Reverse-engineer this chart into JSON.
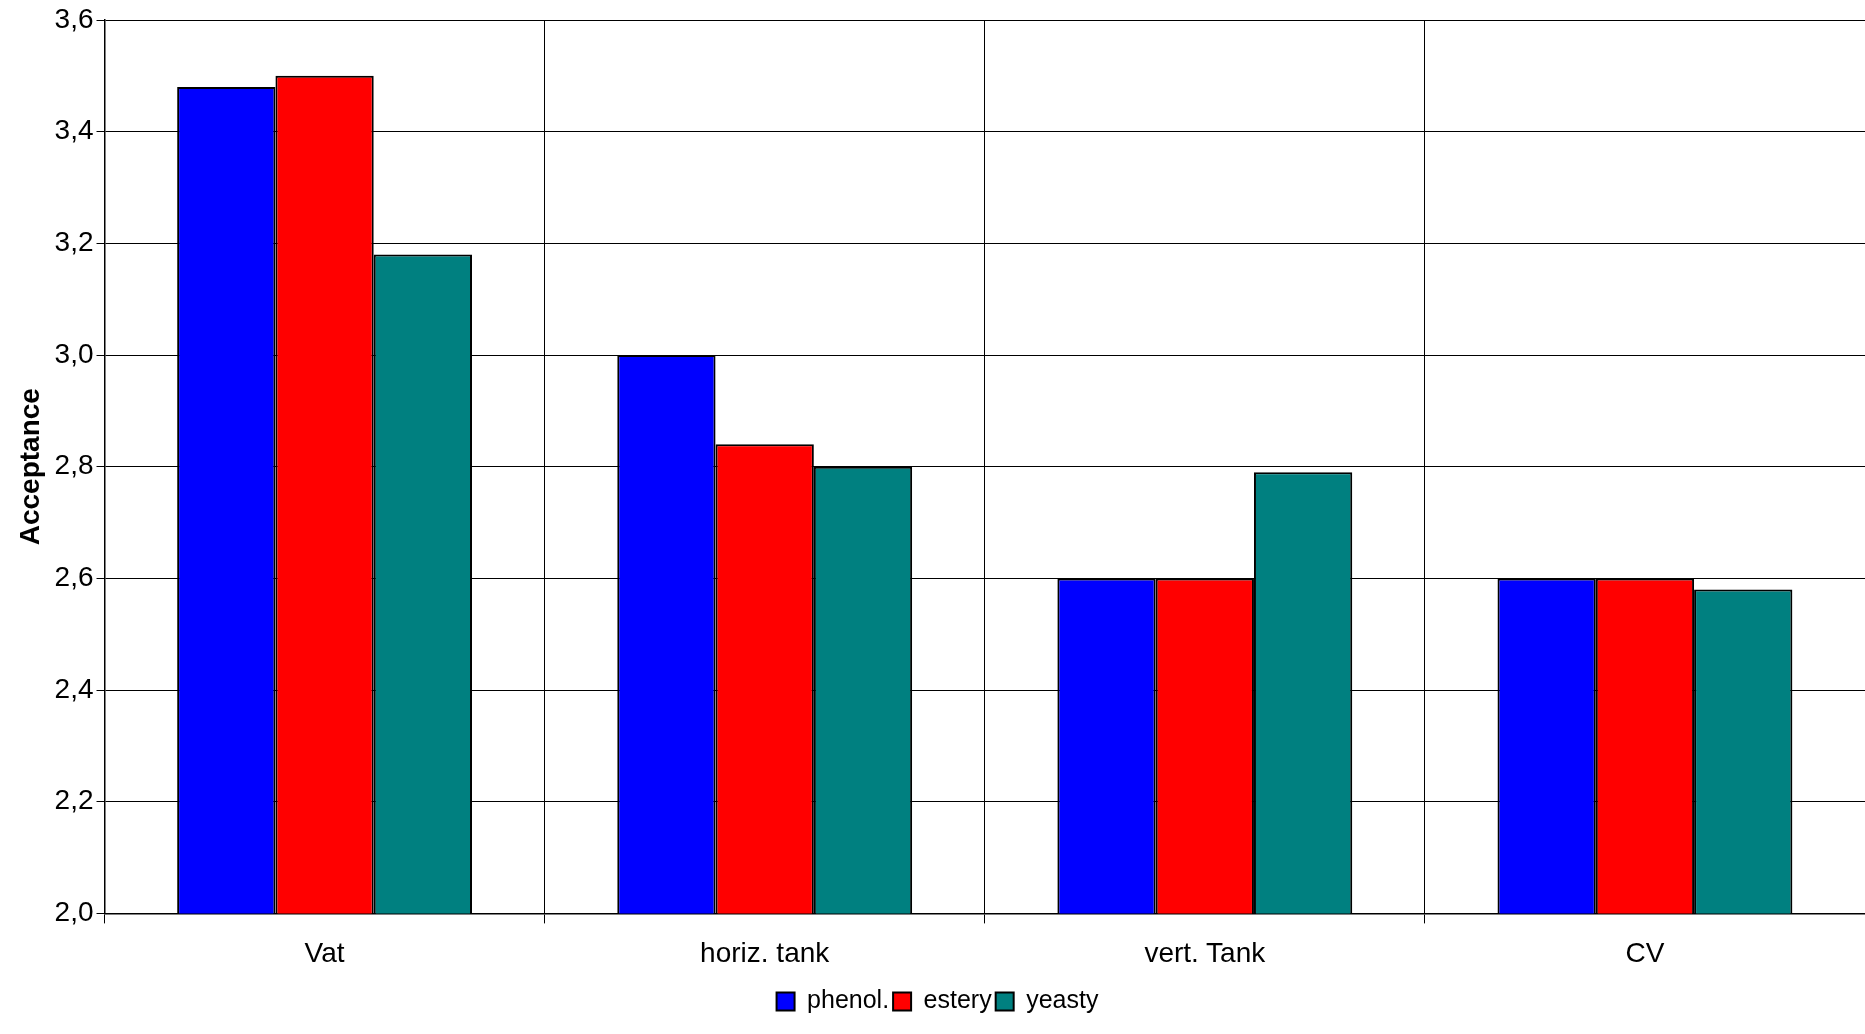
{
  "chart_data": {
    "type": "bar",
    "ylabel": "Acceptance",
    "categories": [
      "Vat",
      "horiz. tank",
      "vert. Tank",
      "CV"
    ],
    "series": [
      {
        "name": "phenol.",
        "color": "#0000ff",
        "values": [
          3.48,
          3.0,
          2.6,
          2.6
        ]
      },
      {
        "name": "estery",
        "color": "#ff0000",
        "values": [
          3.5,
          2.84,
          2.6,
          2.6
        ]
      },
      {
        "name": "yeasty",
        "color": "#008080",
        "values": [
          3.18,
          2.8,
          2.79,
          2.58
        ]
      }
    ],
    "ylim": [
      2.0,
      3.6
    ],
    "yticks": [
      {
        "value": 2.0,
        "label": "2,0"
      },
      {
        "value": 2.2,
        "label": "2,2"
      },
      {
        "value": 2.4,
        "label": "2,4"
      },
      {
        "value": 2.6,
        "label": "2,6"
      },
      {
        "value": 2.8,
        "label": "2,8"
      },
      {
        "value": 3.0,
        "label": "3,0"
      },
      {
        "value": 3.2,
        "label": "3,2"
      },
      {
        "value": 3.4,
        "label": "3,4"
      },
      {
        "value": 3.6,
        "label": "3,6"
      }
    ],
    "grid": true,
    "legend": "bottom"
  }
}
